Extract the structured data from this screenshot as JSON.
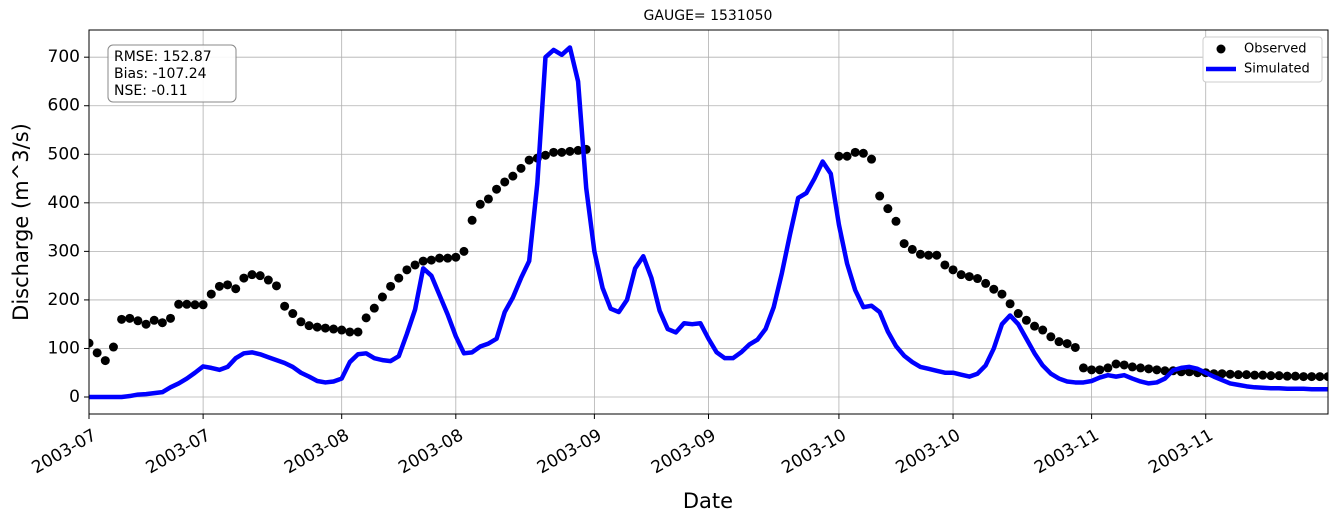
{
  "chart_data": {
    "type": "line",
    "title": "GAUGE= 1531050",
    "xlabel": "Date",
    "ylabel": "Discharge (m^3/s)",
    "annotation": [
      "RMSE: 152.87",
      "Bias: -107.24",
      "NSE: -0.11"
    ],
    "legend": "upper right",
    "grid": true,
    "xlim": [
      0,
      152
    ],
    "ylim": [
      -35,
      756
    ],
    "yticks": [
      0,
      100,
      200,
      300,
      400,
      500,
      600,
      700
    ],
    "xticks": [
      {
        "value": 0,
        "label": "2003-07"
      },
      {
        "value": 14,
        "label": "2003-07"
      },
      {
        "value": 31,
        "label": "2003-08"
      },
      {
        "value": 45,
        "label": "2003-08"
      },
      {
        "value": 62,
        "label": "2003-09"
      },
      {
        "value": 76,
        "label": "2003-09"
      },
      {
        "value": 92,
        "label": "2003-10"
      },
      {
        "value": 106,
        "label": "2003-10"
      },
      {
        "value": 123,
        "label": "2003-11"
      },
      {
        "value": 137,
        "label": "2003-11"
      }
    ],
    "x": [
      0,
      1,
      2,
      3,
      4,
      5,
      6,
      7,
      8,
      9,
      10,
      11,
      12,
      13,
      14,
      15,
      16,
      17,
      18,
      19,
      20,
      21,
      22,
      23,
      24,
      25,
      26,
      27,
      28,
      29,
      30,
      31,
      32,
      33,
      34,
      35,
      36,
      37,
      38,
      39,
      40,
      41,
      42,
      43,
      44,
      45,
      46,
      47,
      48,
      49,
      50,
      51,
      52,
      53,
      54,
      55,
      56,
      57,
      58,
      59,
      60,
      61,
      62,
      63,
      64,
      65,
      66,
      67,
      68,
      69,
      70,
      71,
      72,
      73,
      74,
      75,
      76,
      77,
      78,
      79,
      80,
      81,
      82,
      83,
      84,
      85,
      86,
      87,
      88,
      89,
      90,
      91,
      92,
      93,
      94,
      95,
      96,
      97,
      98,
      99,
      100,
      101,
      102,
      103,
      104,
      105,
      106,
      107,
      108,
      109,
      110,
      111,
      112,
      113,
      114,
      115,
      116,
      117,
      118,
      119,
      120,
      121,
      122,
      123,
      124,
      125,
      126,
      127,
      128,
      129,
      130,
      131,
      132,
      133,
      134,
      135,
      136,
      137,
      138,
      139,
      140,
      141,
      142,
      143,
      144,
      145,
      146,
      147,
      148,
      149,
      150,
      151,
      152
    ],
    "series": [
      {
        "name": "Observed",
        "type": "scatter",
        "color": "#000000",
        "values": [
          111,
          91,
          75,
          103,
          160,
          162,
          157,
          150,
          158,
          153,
          162,
          191,
          191,
          190,
          190,
          212,
          228,
          231,
          223,
          245,
          252,
          250,
          241,
          229,
          187,
          172,
          155,
          147,
          144,
          142,
          140,
          138,
          134,
          134,
          163,
          183,
          206,
          228,
          245,
          262,
          272,
          280,
          282,
          286,
          286,
          288,
          300,
          364,
          397,
          408,
          428,
          443,
          455,
          471,
          488,
          492,
          498,
          504,
          504,
          506,
          508,
          510,
          null,
          null,
          null,
          null,
          null,
          null,
          null,
          null,
          null,
          null,
          null,
          null,
          null,
          null,
          null,
          null,
          null,
          null,
          null,
          null,
          null,
          null,
          null,
          null,
          null,
          null,
          null,
          null,
          null,
          null,
          496,
          496,
          504,
          502,
          490,
          414,
          388,
          362,
          316,
          304,
          294,
          292,
          292,
          272,
          262,
          252,
          248,
          244,
          234,
          222,
          212,
          192,
          172,
          158,
          146,
          138,
          124,
          114,
          110,
          102,
          60,
          56,
          56,
          60,
          68,
          66,
          62,
          60,
          58,
          56,
          54,
          54,
          52,
          52,
          50,
          50,
          48,
          48,
          47,
          46,
          46,
          45,
          45,
          44,
          44,
          43,
          43,
          42,
          42,
          42,
          42
        ]
      },
      {
        "name": "Simulated",
        "type": "line",
        "color": "#0000ff",
        "values": [
          0,
          0,
          0,
          0,
          0,
          2,
          5,
          6,
          8,
          10,
          20,
          28,
          38,
          50,
          63,
          60,
          56,
          62,
          80,
          90,
          92,
          88,
          82,
          76,
          70,
          62,
          50,
          42,
          33,
          30,
          32,
          38,
          72,
          88,
          90,
          80,
          76,
          74,
          84,
          130,
          180,
          265,
          250,
          210,
          170,
          125,
          90,
          92,
          104,
          110,
          120,
          175,
          205,
          245,
          280,
          440,
          700,
          715,
          705,
          720,
          650,
          430,
          300,
          225,
          182,
          175,
          200,
          265,
          290,
          245,
          178,
          140,
          133,
          152,
          150,
          152,
          120,
          92,
          80,
          80,
          92,
          108,
          118,
          140,
          185,
          255,
          335,
          410,
          420,
          450,
          485,
          460,
          355,
          275,
          220,
          185,
          188,
          175,
          135,
          105,
          85,
          72,
          62,
          58,
          54,
          50,
          50,
          46,
          42,
          48,
          65,
          100,
          150,
          168,
          150,
          120,
          90,
          65,
          48,
          38,
          32,
          30,
          30,
          33,
          40,
          45,
          42,
          45,
          38,
          32,
          28,
          30,
          38,
          55,
          60,
          62,
          58,
          50,
          42,
          35,
          28,
          25,
          22,
          20,
          19,
          18,
          18,
          17,
          17,
          17,
          16,
          16,
          16
        ]
      }
    ]
  }
}
